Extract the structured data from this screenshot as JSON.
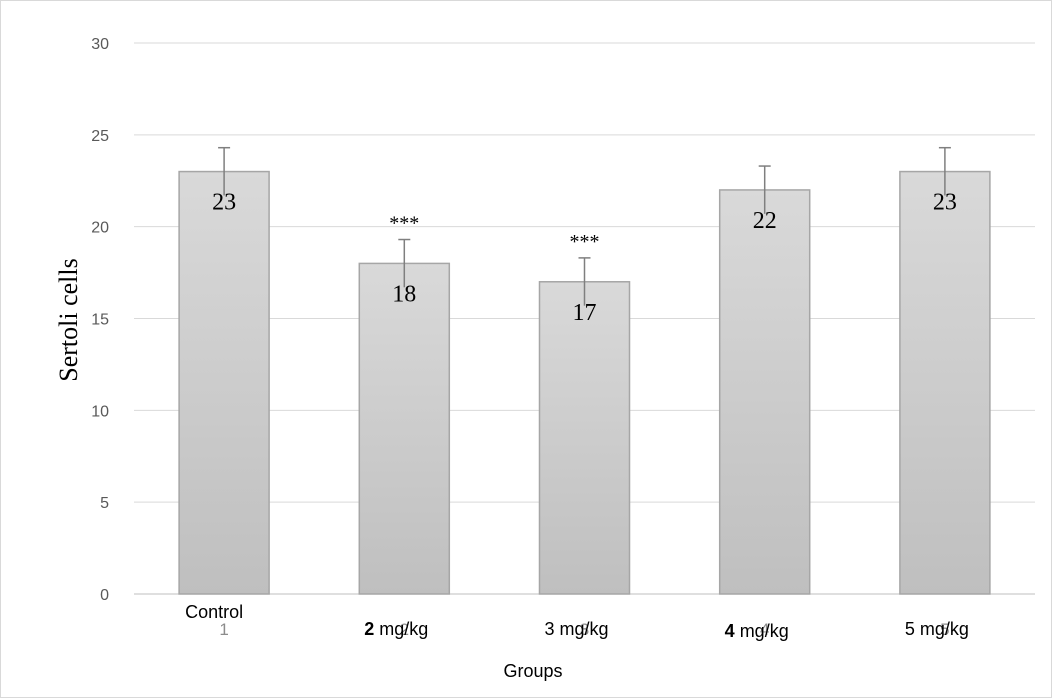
{
  "chart_data": {
    "type": "bar",
    "title": "",
    "xlabel": "Groups",
    "ylabel": "Sertoli cells",
    "ylim": [
      0,
      30
    ],
    "yticks": [
      0,
      5,
      10,
      15,
      20,
      25,
      30
    ],
    "grid": true,
    "categories": [
      "1",
      "2",
      "3",
      "4",
      "5"
    ],
    "values": [
      23,
      18,
      17,
      22,
      23
    ],
    "value_labels": [
      "23",
      "18",
      "17",
      "22",
      "23"
    ],
    "error": [
      1.3,
      1.3,
      1.3,
      1.3,
      1.3
    ],
    "significance": [
      "",
      "***",
      "***",
      "",
      ""
    ],
    "group_labels": [
      {
        "bold": "",
        "text": "Control"
      },
      {
        "bold": "2",
        "text": "mg/kg"
      },
      {
        "bold": "",
        "text": "3  mg/kg"
      },
      {
        "bold": "4",
        "text": "mg/kg"
      },
      {
        "bold": "",
        "text": "5  mg/kg"
      }
    ],
    "colors": {
      "bar_fill_top": "#d9d9d9",
      "bar_fill_bottom": "#bfbfbf",
      "bar_stroke": "#a6a6a6",
      "grid": "#d9d9d9",
      "axis": "#bfbfbf",
      "error_bar": "#7f7f7f"
    }
  }
}
